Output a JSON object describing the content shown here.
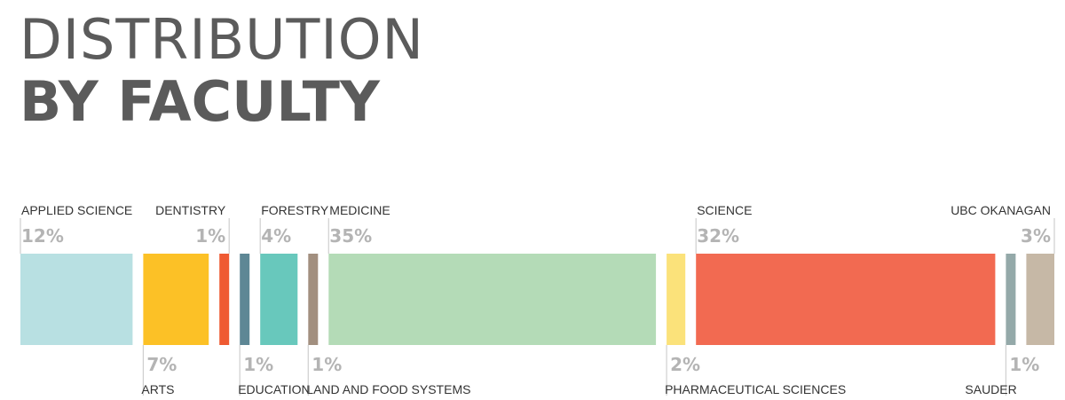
{
  "header": {
    "title_line1": "DISTRIBUTION",
    "title_line2": "BY FACULTY"
  },
  "chart_data": {
    "type": "bar",
    "orientation": "stacked-horizontal-segments",
    "categories": [
      "APPLIED SCIENCE",
      "ARTS",
      "DENTISTRY",
      "EDUCATION",
      "FORESTRY",
      "LAND AND FOOD SYSTEMS",
      "MEDICINE",
      "PHARMACEUTICAL SCIENCES",
      "SCIENCE",
      "SAUDER",
      "UBC OKANAGAN"
    ],
    "values": [
      12,
      7,
      1,
      1,
      4,
      1,
      35,
      2,
      32,
      1,
      3
    ],
    "value_labels": [
      "12%",
      "7%",
      "1%",
      "1%",
      "4%",
      "1%",
      "35%",
      "2%",
      "32%",
      "1%",
      "3%"
    ],
    "label_position": [
      "top",
      "bottom",
      "top",
      "bottom",
      "top",
      "bottom",
      "top",
      "bottom",
      "top",
      "bottom",
      "top"
    ],
    "colors": [
      "#b8e0e2",
      "#fcc126",
      "#ef5a32",
      "#5e8795",
      "#68c8bc",
      "#a28f7f",
      "#b4dbb7",
      "#fbe27a",
      "#f26a51",
      "#94a9a9",
      "#c6b8a6"
    ],
    "unit": "%"
  }
}
